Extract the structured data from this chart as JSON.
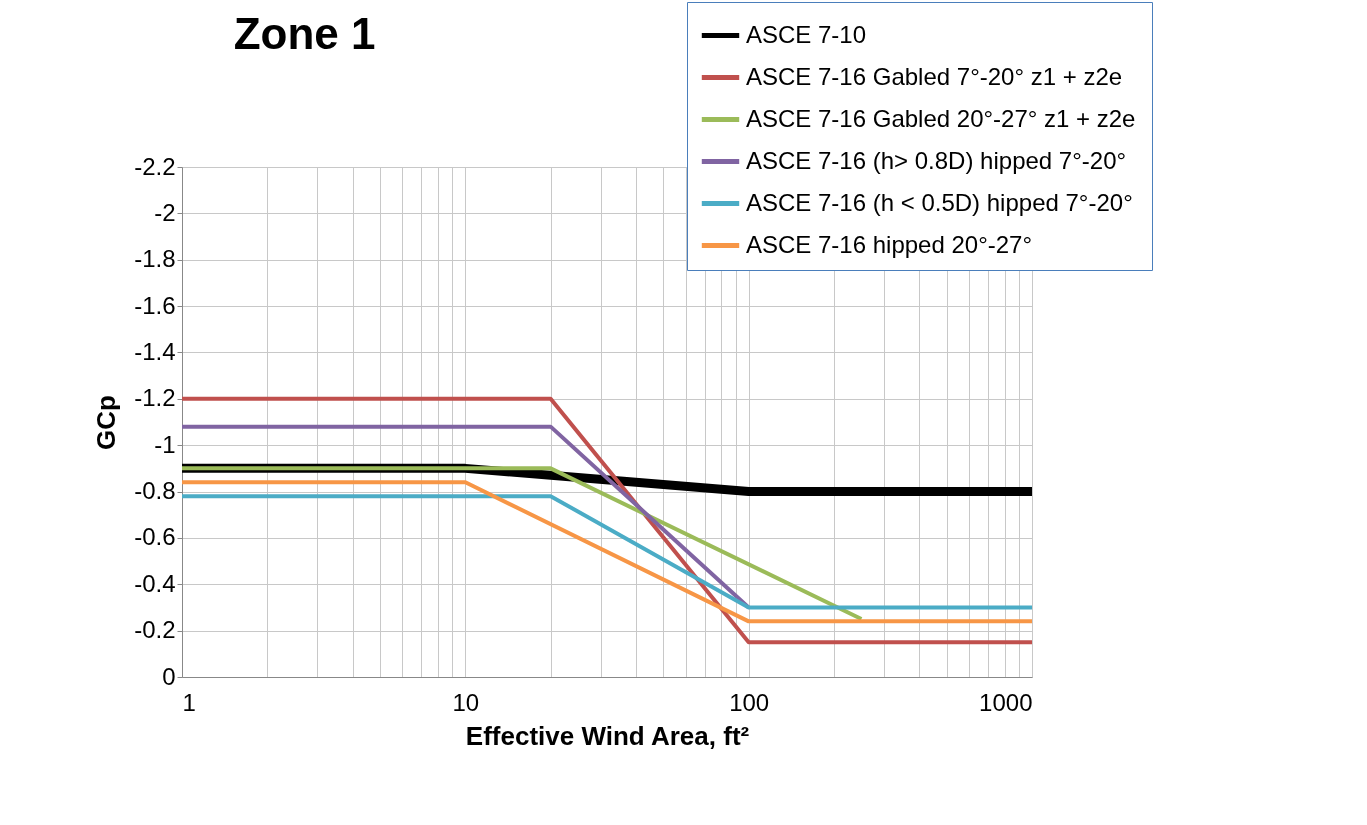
{
  "chart_data": {
    "type": "line",
    "title": "Zone 1",
    "xlabel": "Effective Wind Area, ft²",
    "ylabel": "GCp",
    "log": "x",
    "grid": true,
    "legend": "top right",
    "xlim": [
      1,
      1000
    ],
    "xticks": [
      1,
      10,
      100,
      1000
    ],
    "ylim": [
      0,
      -2.2
    ],
    "yticks": [
      -2.2,
      -2,
      -1.8,
      -1.6,
      -1.4,
      -1.2,
      -1,
      -0.8,
      -0.6,
      -0.4,
      -0.2,
      0
    ],
    "series": [
      {
        "name": "ASCE 7-10",
        "color": "#000000",
        "x": [
          1,
          10,
          100,
          1000
        ],
        "values": [
          -0.9,
          -0.9,
          -0.8,
          -0.8
        ]
      },
      {
        "name": "ASCE 7-16 Gabled 7°-20° z1 + z2e",
        "color": "#c0504d",
        "x": [
          1,
          20,
          100,
          1000
        ],
        "values": [
          -1.2,
          -1.2,
          -0.15,
          -0.15
        ]
      },
      {
        "name": "ASCE 7-16 Gabled 20°-27° z1 + z2e",
        "color": "#9bbb59",
        "x": [
          1,
          20,
          250
        ],
        "values": [
          -0.9,
          -0.9,
          -0.25
        ]
      },
      {
        "name": "ASCE 7-16  (h> 0.8D) hipped 7°-20°",
        "color": "#8064a2",
        "x": [
          1,
          20,
          100
        ],
        "values": [
          -1.08,
          -1.08,
          -0.3
        ]
      },
      {
        "name": "ASCE 7-16  (h < 0.5D) hipped 7°-20°",
        "color": "#4bacc6",
        "x": [
          1,
          20,
          100,
          1000
        ],
        "values": [
          -0.78,
          -0.78,
          -0.3,
          -0.3
        ]
      },
      {
        "name": "ASCE 7-16 hipped 20°-27°",
        "color": "#f79646",
        "x": [
          1,
          10,
          100,
          1000
        ],
        "values": [
          -0.84,
          -0.84,
          -0.24,
          -0.24
        ]
      }
    ]
  }
}
